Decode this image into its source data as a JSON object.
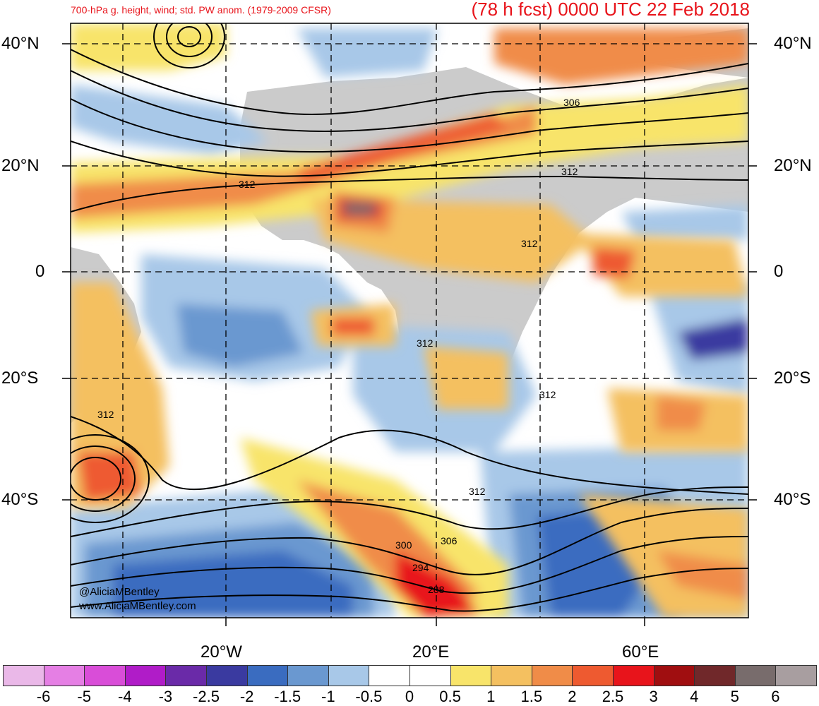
{
  "header": {
    "left_title": "700-hPa g. height, wind; std. PW anom. (1979-2009 CFSR)",
    "right_title": "(78 h fcst) 0000 UTC 22 Feb 2018"
  },
  "axes": {
    "lat_labels": [
      "40°N",
      "20°N",
      "0",
      "20°S",
      "40°S"
    ],
    "lon_labels": [
      "20°W",
      "20°E",
      "60°E"
    ]
  },
  "contour_labels": [
    "306",
    "312",
    "312",
    "312",
    "312",
    "312",
    "312",
    "312",
    "300",
    "294",
    "288",
    "306"
  ],
  "credits": {
    "handle": "@AliciaMBentley",
    "site": "www.AliciaMBentley.com"
  },
  "colorbar": {
    "labels": [
      "-6",
      "-5",
      "-4",
      "-3",
      "-2.5",
      "-2",
      "-1.5",
      "-1",
      "-0.5",
      "0",
      "0.5",
      "1",
      "1.5",
      "2",
      "2.5",
      "3",
      "4",
      "5",
      "6"
    ],
    "colors": [
      "#eab8e8",
      "#e57fe4",
      "#d94dd8",
      "#b01cc8",
      "#6a2aa8",
      "#3a3aa0",
      "#3a6cc0",
      "#6a98d0",
      "#a8c8e8",
      "#ffffff",
      "#ffffff",
      "#f8e46a",
      "#f4c060",
      "#f08c48",
      "#ee5a30",
      "#e8141b",
      "#a00e10",
      "#70282a",
      "#786c6c",
      "#a89ea0"
    ]
  },
  "colors": {
    "title": "#e8141b",
    "land_gray": "#c8c8c8"
  }
}
